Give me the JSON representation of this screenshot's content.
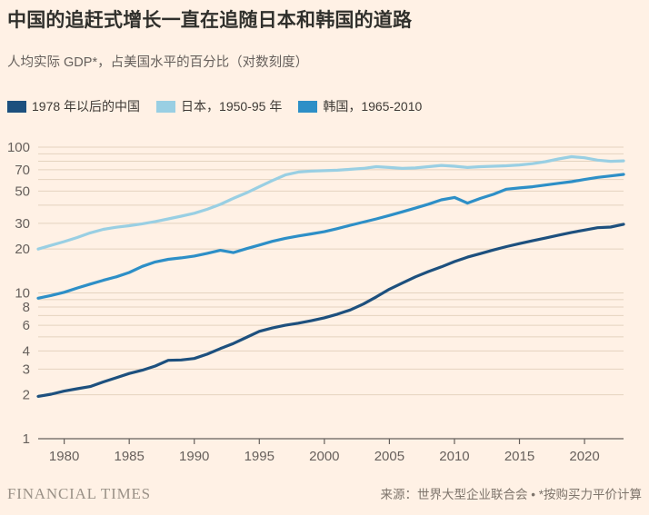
{
  "header": {
    "title": "中国的追赶式增长一直在追随日本和韩国的道路",
    "subtitle": "人均实际 GDP*，占美国水平的百分比（对数刻度）"
  },
  "legend": [
    {
      "label": "1978 年以后的中国",
      "color": "#1d507e"
    },
    {
      "label": "日本，1950-95 年",
      "color": "#99cfe3"
    },
    {
      "label": "韩国，1965-2010",
      "color": "#2d8fc7"
    }
  ],
  "footer": {
    "brand": "FINANCIAL TIMES",
    "source": "来源：世界大型企业联合会 • *按购买力平价计算"
  },
  "colors": {
    "background": "#fff1e5",
    "gridline": "#e4d3bf",
    "axis": "#66605c",
    "tick_label": "#66605c"
  },
  "chart_data": {
    "type": "line",
    "title": "中国的追赶式增长一直在追随日本和韩国的道路",
    "subtitle": "人均实际 GDP*，占美国水平的百分比（对数刻度）",
    "y_scale": "log",
    "x_range": [
      1978,
      2023
    ],
    "ylim": [
      1,
      100
    ],
    "x_ticks": [
      1980,
      1985,
      1990,
      1995,
      2000,
      2005,
      2010,
      2015,
      2020
    ],
    "y_gridlines": [
      2,
      3,
      4,
      5,
      6,
      7,
      8,
      9,
      10,
      20,
      30,
      40,
      50,
      60,
      70,
      80,
      90,
      100
    ],
    "y_tick_labels": [
      1,
      2,
      3,
      4,
      6,
      8,
      10,
      20,
      30,
      50,
      70,
      100
    ],
    "legend_position": "top-left",
    "grid": true,
    "x_step": 1,
    "series": [
      {
        "name": "1978 年以后的中国",
        "color": "#1d507e",
        "x_start": 1978,
        "values": [
          1.95,
          2.02,
          2.12,
          2.2,
          2.28,
          2.45,
          2.62,
          2.8,
          2.95,
          3.15,
          3.45,
          3.47,
          3.55,
          3.8,
          4.15,
          4.5,
          4.95,
          5.45,
          5.75,
          6.0,
          6.2,
          6.45,
          6.75,
          7.15,
          7.65,
          8.4,
          9.4,
          10.6,
          11.7,
          12.9,
          14.0,
          15.1,
          16.4,
          17.6,
          18.6,
          19.7,
          20.8,
          21.8,
          22.8,
          23.8,
          24.9,
          26.0,
          27.0,
          28.0,
          28.3,
          29.6
        ]
      },
      {
        "name": "日本，1950-95 年",
        "color": "#99cfe3",
        "x_start": 1978,
        "values": [
          20.0,
          21.2,
          22.5,
          24.0,
          25.8,
          27.3,
          28.2,
          28.9,
          29.8,
          30.9,
          32.2,
          33.6,
          35.2,
          37.5,
          40.5,
          44.5,
          48.5,
          53.5,
          59.0,
          64.5,
          67.5,
          68.5,
          69.0,
          69.5,
          70.5,
          71.5,
          73.5,
          72.5,
          71.5,
          72.0,
          73.5,
          75.0,
          74.0,
          72.5,
          73.5,
          74.0,
          74.5,
          75.5,
          77.0,
          79.5,
          83.0,
          86.0,
          84.5,
          81.5,
          80.0,
          80.5
        ]
      },
      {
        "name": "韩国，1965-2010",
        "color": "#2d8fc7",
        "x_start": 1978,
        "values": [
          9.2,
          9.6,
          10.1,
          10.8,
          11.5,
          12.2,
          12.9,
          13.8,
          15.2,
          16.3,
          17.0,
          17.4,
          17.9,
          18.7,
          19.6,
          18.9,
          20.1,
          21.3,
          22.6,
          23.7,
          24.6,
          25.4,
          26.3,
          27.6,
          29.1,
          30.6,
          32.2,
          34.0,
          36.0,
          38.2,
          40.6,
          43.5,
          45.2,
          41.3,
          44.5,
          47.5,
          51.5,
          52.5,
          53.5,
          55.0,
          56.5,
          58.0,
          60.0,
          62.0,
          63.5,
          65.0
        ]
      }
    ]
  }
}
